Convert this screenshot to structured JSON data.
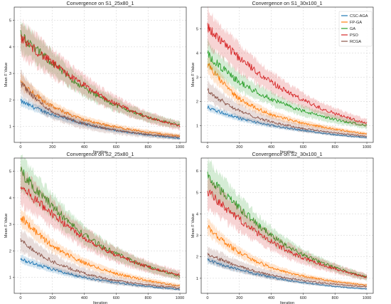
{
  "legend": {
    "placement": "top-right (first panel row, right panel)",
    "entries": [
      {
        "name": "CSC-AGA",
        "color": "#1f77b4"
      },
      {
        "name": "FP-GA",
        "color": "#ff7f0e"
      },
      {
        "name": "GA",
        "color": "#2ca02c"
      },
      {
        "name": "PSO",
        "color": "#d62728"
      },
      {
        "name": "RCGA",
        "color": "#8c564b"
      }
    ]
  },
  "chart_data": [
    {
      "type": "line",
      "title": "Convergence on S1_25x80_1",
      "xlabel": "Iteration",
      "ylabel": "Mean F Value",
      "xlim": [
        -40,
        1040
      ],
      "ylim": [
        0.4,
        5.5
      ],
      "xticks": [
        "0",
        "200",
        "400",
        "600",
        "800",
        "1000"
      ],
      "yticks": [
        "1",
        "2",
        "3",
        "4",
        "5"
      ],
      "grid": true,
      "series": [
        {
          "name": "CSC-AGA",
          "color": "#1f77b4",
          "x": [
            0,
            200,
            400,
            600,
            800,
            1000
          ],
          "y": [
            1.95,
            1.45,
            1.1,
            0.85,
            0.68,
            0.55
          ]
        },
        {
          "name": "FP-GA",
          "color": "#ff7f0e",
          "x": [
            0,
            200,
            400,
            600,
            800,
            1000
          ],
          "y": [
            2.7,
            1.75,
            1.25,
            0.98,
            0.78,
            0.65
          ]
        },
        {
          "name": "GA",
          "color": "#2ca02c",
          "x": [
            0,
            200,
            400,
            600,
            800,
            1000
          ],
          "y": [
            4.45,
            3.4,
            2.45,
            1.8,
            1.35,
            1.05
          ]
        },
        {
          "name": "PSO",
          "color": "#d62728",
          "x": [
            0,
            200,
            400,
            600,
            800,
            1000
          ],
          "y": [
            4.35,
            3.4,
            2.55,
            1.85,
            1.35,
            1.02
          ]
        },
        {
          "name": "RCGA",
          "color": "#8c564b",
          "x": [
            0,
            200,
            400,
            600,
            800,
            1000
          ],
          "y": [
            2.65,
            1.55,
            1.1,
            0.85,
            0.7,
            0.6
          ]
        }
      ]
    },
    {
      "type": "line",
      "title": "Convergence on S1_30x100_1",
      "xlabel": "Iteration",
      "ylabel": "Mean F Value",
      "xlim": [
        -40,
        1040
      ],
      "ylim": [
        0.3,
        5.9
      ],
      "xticks": [
        "0",
        "200",
        "400",
        "600",
        "800",
        "1000"
      ],
      "yticks": [
        "1",
        "2",
        "3",
        "4",
        "5"
      ],
      "grid": true,
      "series": [
        {
          "name": "CSC-AGA",
          "color": "#1f77b4",
          "x": [
            0,
            200,
            400,
            600,
            800,
            1000
          ],
          "y": [
            1.75,
            1.3,
            1.0,
            0.8,
            0.62,
            0.5
          ]
        },
        {
          "name": "FP-GA",
          "color": "#ff7f0e",
          "x": [
            0,
            200,
            400,
            600,
            800,
            1000
          ],
          "y": [
            3.55,
            2.1,
            1.45,
            1.1,
            0.85,
            0.65
          ]
        },
        {
          "name": "GA",
          "color": "#2ca02c",
          "x": [
            0,
            200,
            400,
            600,
            800,
            1000
          ],
          "y": [
            3.95,
            2.8,
            2.1,
            1.6,
            1.25,
            1.0
          ]
        },
        {
          "name": "PSO",
          "color": "#d62728",
          "x": [
            0,
            200,
            400,
            600,
            800,
            1000
          ],
          "y": [
            5.05,
            3.8,
            2.8,
            2.05,
            1.5,
            1.1
          ]
        },
        {
          "name": "RCGA",
          "color": "#8c564b",
          "x": [
            0,
            200,
            400,
            600,
            800,
            1000
          ],
          "y": [
            2.45,
            1.6,
            1.15,
            0.88,
            0.7,
            0.55
          ]
        }
      ]
    },
    {
      "type": "line",
      "title": "Convergence on S2_25x80_1",
      "xlabel": "Iteration",
      "ylabel": "Mean F Value",
      "xlim": [
        -40,
        1040
      ],
      "ylim": [
        0.4,
        5.5
      ],
      "xticks": [
        "0",
        "200",
        "400",
        "600",
        "800",
        "1000"
      ],
      "yticks": [
        "1",
        "2",
        "3",
        "4",
        "5"
      ],
      "grid": true,
      "series": [
        {
          "name": "CSC-AGA",
          "color": "#1f77b4",
          "x": [
            0,
            200,
            400,
            600,
            800,
            1000
          ],
          "y": [
            1.7,
            1.3,
            1.0,
            0.8,
            0.66,
            0.55
          ]
        },
        {
          "name": "FP-GA",
          "color": "#ff7f0e",
          "x": [
            0,
            200,
            400,
            600,
            800,
            1000
          ],
          "y": [
            3.3,
            2.2,
            1.55,
            1.15,
            0.88,
            0.68
          ]
        },
        {
          "name": "GA",
          "color": "#2ca02c",
          "x": [
            0,
            200,
            400,
            600,
            800,
            1000
          ],
          "y": [
            5.0,
            3.7,
            2.6,
            1.9,
            1.4,
            1.05
          ]
        },
        {
          "name": "PSO",
          "color": "#d62728",
          "x": [
            0,
            200,
            400,
            600,
            800,
            1000
          ],
          "y": [
            4.45,
            3.4,
            2.5,
            1.85,
            1.4,
            1.08
          ]
        },
        {
          "name": "RCGA",
          "color": "#8c564b",
          "x": [
            0,
            200,
            400,
            600,
            800,
            1000
          ],
          "y": [
            2.4,
            1.6,
            1.15,
            0.88,
            0.72,
            0.6
          ]
        }
      ]
    },
    {
      "type": "line",
      "title": "Convergence on S2_30x100_1",
      "xlabel": "Iteration",
      "ylabel": "Mean F Value",
      "xlim": [
        -40,
        1040
      ],
      "ylim": [
        0.3,
        6.6
      ],
      "xticks": [
        "0",
        "200",
        "400",
        "600",
        "800",
        "1000"
      ],
      "yticks": [
        "1",
        "2",
        "3",
        "4",
        "5",
        "6"
      ],
      "grid": true,
      "series": [
        {
          "name": "CSC-AGA",
          "color": "#1f77b4",
          "x": [
            0,
            200,
            400,
            600,
            800,
            1000
          ],
          "y": [
            1.85,
            1.4,
            1.05,
            0.8,
            0.62,
            0.5
          ]
        },
        {
          "name": "FP-GA",
          "color": "#ff7f0e",
          "x": [
            0,
            200,
            400,
            600,
            800,
            1000
          ],
          "y": [
            3.4,
            2.2,
            1.5,
            1.1,
            0.85,
            0.68
          ]
        },
        {
          "name": "GA",
          "color": "#2ca02c",
          "x": [
            0,
            200,
            400,
            600,
            800,
            1000
          ],
          "y": [
            5.8,
            4.3,
            3.0,
            2.1,
            1.5,
            1.05
          ]
        },
        {
          "name": "PSO",
          "color": "#d62728",
          "x": [
            0,
            200,
            400,
            600,
            800,
            1000
          ],
          "y": [
            5.05,
            3.75,
            2.7,
            1.95,
            1.45,
            1.05
          ]
        },
        {
          "name": "RCGA",
          "color": "#8c564b",
          "x": [
            0,
            200,
            400,
            600,
            800,
            1000
          ],
          "y": [
            2.15,
            1.55,
            1.15,
            0.9,
            0.72,
            0.6
          ]
        }
      ]
    }
  ]
}
